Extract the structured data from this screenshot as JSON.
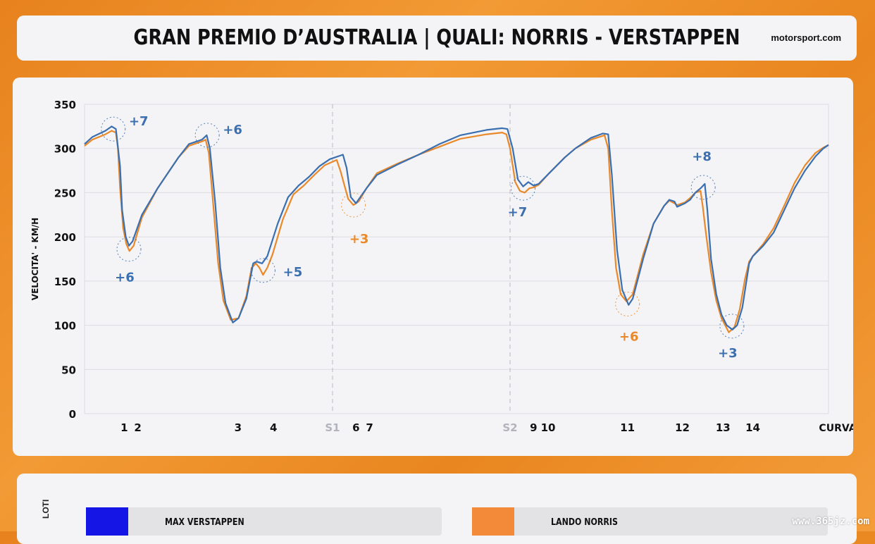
{
  "header": {
    "title": "GRAN PREMIO D’AUSTRALIA |  QUALI: NORRIS - VERSTAPPEN",
    "brand": "motorsport.com"
  },
  "chart_data": {
    "type": "line",
    "ylabel": "VELOCITA' - KM/H",
    "xlabel": "CURVA",
    "ylim": [
      0,
      350
    ],
    "y_ticks": [
      0,
      50,
      100,
      150,
      200,
      250,
      300,
      350
    ],
    "grid": true,
    "sector_markers": [
      "S1",
      "S2"
    ],
    "corners": [
      "1",
      "2",
      "3",
      "4",
      "6",
      "7",
      "9",
      "10",
      "11",
      "12",
      "13",
      "14"
    ],
    "series": [
      {
        "name": "MAX VERSTAPPEN",
        "color": "#3b6fb0",
        "values": [
          [
            0,
            305
          ],
          [
            1.5,
            313
          ],
          [
            4,
            320
          ],
          [
            5.2,
            325
          ],
          [
            6.0,
            322
          ],
          [
            6.8,
            280
          ],
          [
            7.2,
            230
          ],
          [
            7.9,
            200
          ],
          [
            8.5,
            190
          ],
          [
            9.2,
            195
          ],
          [
            11,
            225
          ],
          [
            14,
            255
          ],
          [
            18,
            290
          ],
          [
            20,
            305
          ],
          [
            22.5,
            310
          ],
          [
            23.4,
            315
          ],
          [
            24,
            300
          ],
          [
            25,
            240
          ],
          [
            26,
            165
          ],
          [
            27,
            125
          ],
          [
            28.4,
            103
          ],
          [
            29.5,
            108
          ],
          [
            31,
            130
          ],
          [
            32.3,
            170
          ],
          [
            33,
            172
          ],
          [
            34,
            170
          ],
          [
            35,
            178
          ],
          [
            37,
            215
          ],
          [
            39,
            245
          ],
          [
            41,
            258
          ],
          [
            43,
            268
          ],
          [
            45,
            280
          ],
          [
            47,
            288
          ],
          [
            49.5,
            293
          ],
          [
            50.2,
            278
          ],
          [
            51,
            245
          ],
          [
            52,
            238
          ],
          [
            54,
            255
          ],
          [
            56,
            270
          ],
          [
            60,
            282
          ],
          [
            64,
            293
          ],
          [
            68,
            305
          ],
          [
            72,
            315
          ],
          [
            77,
            321
          ],
          [
            80,
            323
          ],
          [
            81,
            322
          ],
          [
            82,
            300
          ],
          [
            83,
            265
          ],
          [
            84,
            257
          ],
          [
            85,
            262
          ],
          [
            86,
            258
          ],
          [
            87,
            260
          ],
          [
            89,
            272
          ],
          [
            92,
            290
          ],
          [
            94,
            300
          ],
          [
            97,
            312
          ],
          [
            99.3,
            317
          ],
          [
            100.3,
            316
          ],
          [
            101,
            270
          ],
          [
            102,
            185
          ],
          [
            103,
            140
          ],
          [
            104.2,
            123
          ],
          [
            105,
            130
          ],
          [
            107,
            175
          ],
          [
            109,
            215
          ],
          [
            111,
            235
          ],
          [
            112,
            242
          ],
          [
            113,
            240
          ],
          [
            113.5,
            234
          ],
          [
            115,
            238
          ],
          [
            116,
            242
          ],
          [
            117,
            250
          ],
          [
            118,
            255
          ],
          [
            118.8,
            260
          ],
          [
            119.3,
            230
          ],
          [
            120,
            175
          ],
          [
            121,
            135
          ],
          [
            122,
            112
          ],
          [
            123,
            100
          ],
          [
            124.1,
            95
          ],
          [
            125,
            100
          ],
          [
            126,
            120
          ],
          [
            127.3,
            170
          ],
          [
            128,
            178
          ],
          [
            130,
            190
          ],
          [
            132,
            205
          ],
          [
            134,
            230
          ],
          [
            136,
            255
          ],
          [
            138,
            275
          ],
          [
            140,
            291
          ],
          [
            141.5,
            300
          ],
          [
            142.5,
            304
          ]
        ]
      },
      {
        "name": "LANDO NORRIS",
        "color": "#e9892a",
        "values": [
          [
            0,
            303
          ],
          [
            1.5,
            310
          ],
          [
            4,
            316
          ],
          [
            5.2,
            320
          ],
          [
            6.0,
            318
          ],
          [
            6.4,
            300
          ],
          [
            6.8,
            255
          ],
          [
            7.4,
            210
          ],
          [
            8,
            192
          ],
          [
            8.6,
            184
          ],
          [
            9.4,
            190
          ],
          [
            11,
            222
          ],
          [
            14,
            255
          ],
          [
            18,
            290
          ],
          [
            20,
            303
          ],
          [
            22.5,
            308
          ],
          [
            23.2,
            310
          ],
          [
            23.8,
            295
          ],
          [
            24.6,
            240
          ],
          [
            25.6,
            170
          ],
          [
            26.6,
            128
          ],
          [
            28,
            106
          ],
          [
            29.5,
            108
          ],
          [
            31,
            133
          ],
          [
            32,
            165
          ],
          [
            32.8,
            170
          ],
          [
            33.5,
            165
          ],
          [
            34.2,
            157
          ],
          [
            35,
            165
          ],
          [
            36,
            180
          ],
          [
            38,
            220
          ],
          [
            40,
            248
          ],
          [
            42,
            258
          ],
          [
            44,
            270
          ],
          [
            46,
            281
          ],
          [
            48.3,
            287
          ],
          [
            49,
            275
          ],
          [
            49.8,
            258
          ],
          [
            50.5,
            243
          ],
          [
            51.5,
            236
          ],
          [
            52.5,
            240
          ],
          [
            54,
            255
          ],
          [
            56,
            272
          ],
          [
            60,
            283
          ],
          [
            64,
            293
          ],
          [
            68,
            302
          ],
          [
            72,
            311
          ],
          [
            77,
            316
          ],
          [
            80,
            318
          ],
          [
            80.8,
            316
          ],
          [
            81.5,
            300
          ],
          [
            82.5,
            262
          ],
          [
            83.4,
            252
          ],
          [
            84.3,
            250
          ],
          [
            85.2,
            255
          ],
          [
            86,
            256
          ],
          [
            87,
            259
          ],
          [
            89,
            272
          ],
          [
            92,
            290
          ],
          [
            94,
            300
          ],
          [
            97,
            310
          ],
          [
            99.6,
            315
          ],
          [
            100.3,
            300
          ],
          [
            101,
            230
          ],
          [
            101.8,
            165
          ],
          [
            102.7,
            135
          ],
          [
            103.8,
            127
          ],
          [
            105,
            135
          ],
          [
            107,
            180
          ],
          [
            109,
            215
          ],
          [
            111,
            235
          ],
          [
            112,
            241
          ],
          [
            113,
            238
          ],
          [
            113.5,
            236
          ],
          [
            115,
            239
          ],
          [
            116,
            244
          ],
          [
            117,
            250
          ],
          [
            118,
            252
          ],
          [
            118.4,
            235
          ],
          [
            119,
            205
          ],
          [
            120,
            160
          ],
          [
            121,
            128
          ],
          [
            122,
            108
          ],
          [
            123.4,
            92
          ],
          [
            124.5,
            98
          ],
          [
            125.5,
            118
          ],
          [
            126.5,
            152
          ],
          [
            127.3,
            172
          ],
          [
            128,
            178
          ],
          [
            130,
            192
          ],
          [
            132,
            210
          ],
          [
            134,
            235
          ],
          [
            136,
            261
          ],
          [
            138,
            281
          ],
          [
            140,
            295
          ],
          [
            141.5,
            301
          ],
          [
            142.5,
            304
          ]
        ]
      }
    ],
    "deltas": [
      {
        "label": "+7",
        "color": "#3b6fb0",
        "x": 5.5,
        "y": 322
      },
      {
        "label": "+6",
        "color": "#3b6fb0",
        "x": 8.5,
        "y": 186
      },
      {
        "label": "+6",
        "color": "#3b6fb0",
        "x": 23.5,
        "y": 315
      },
      {
        "label": "+5",
        "color": "#3b6fb0",
        "x": 34.2,
        "y": 162
      },
      {
        "label": "+3",
        "color": "#e9892a",
        "x": 51.5,
        "y": 236
      },
      {
        "label": "+7",
        "color": "#3b6fb0",
        "x": 84.0,
        "y": 255
      },
      {
        "label": "+6",
        "color": "#e9892a",
        "x": 104.0,
        "y": 124
      },
      {
        "label": "+8",
        "color": "#3b6fb0",
        "x": 118.5,
        "y": 256
      },
      {
        "label": "+3",
        "color": "#3b6fb0",
        "x": 124.0,
        "y": 99
      }
    ]
  },
  "legend": {
    "axis_label": "LOTI",
    "items": [
      {
        "name": "MAX VERSTAPPEN",
        "color": "#1515e6"
      },
      {
        "name": "LANDO NORRIS",
        "color": "#f28a3a"
      }
    ]
  },
  "watermark": "www.365jz.com"
}
